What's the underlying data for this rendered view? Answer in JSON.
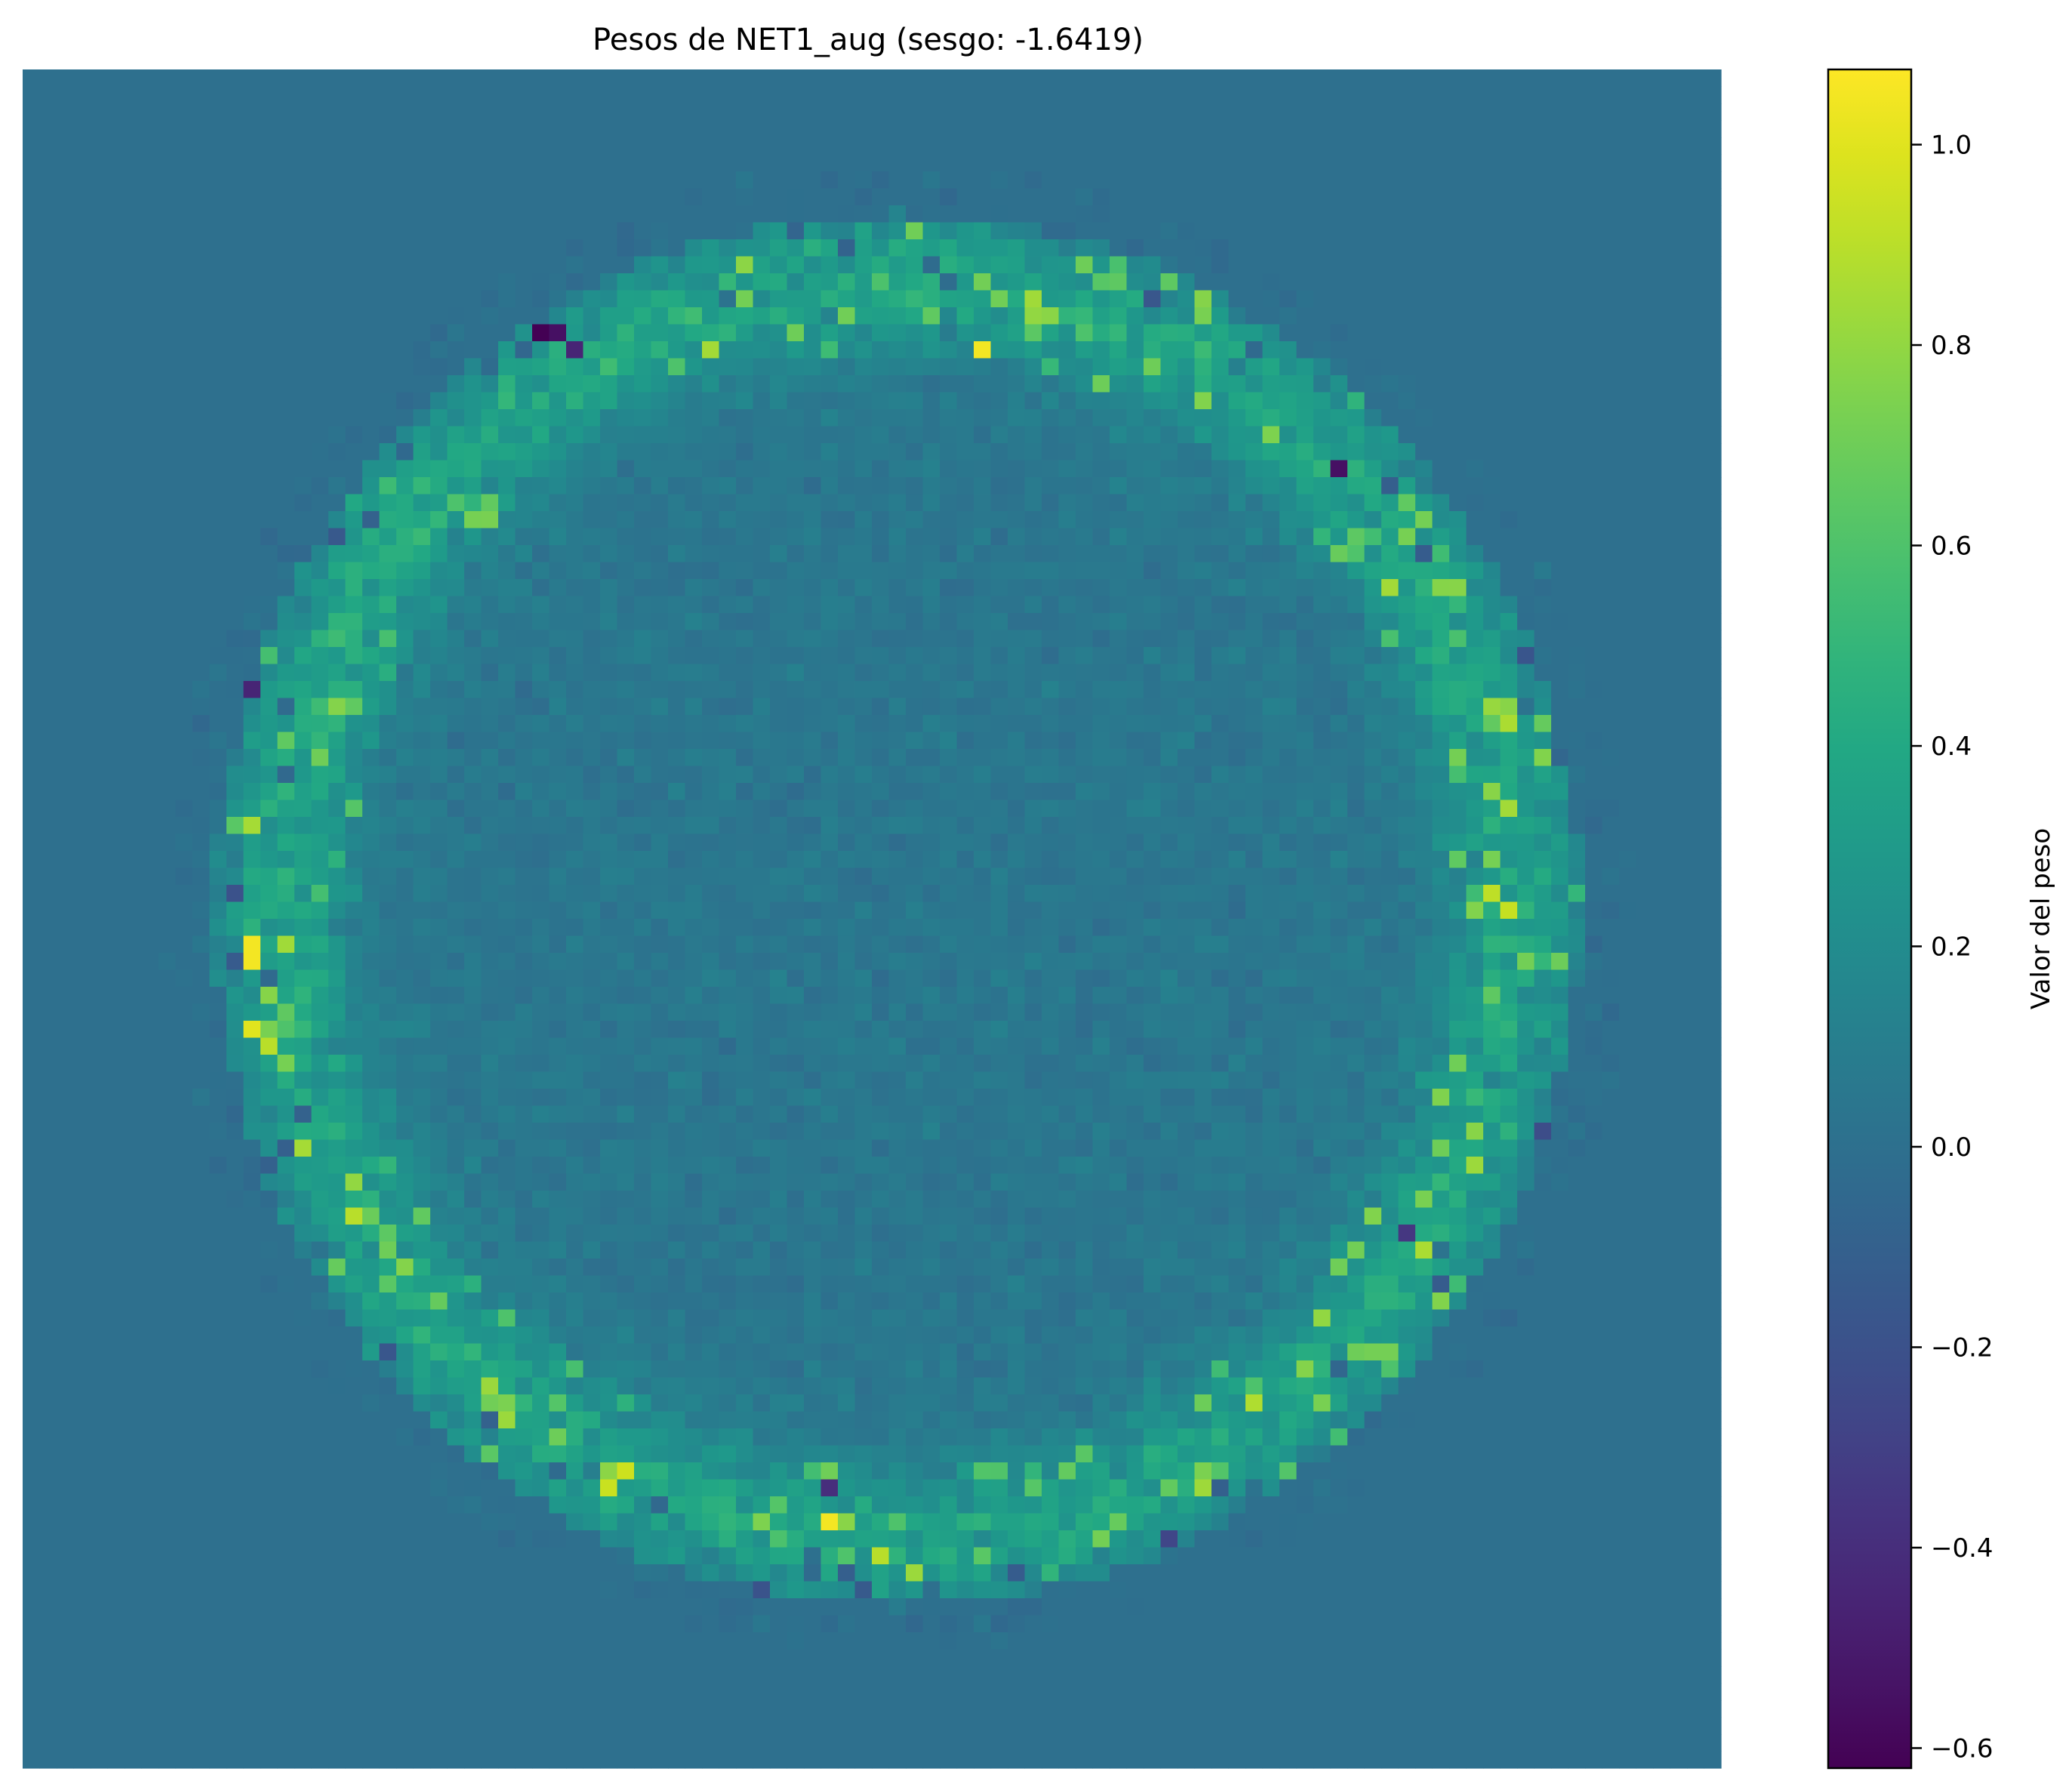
{
  "chart_data": {
    "type": "heatmap",
    "title": "Pesos de NET1_aug (sesgo: -1.6419)",
    "grid_size": [
      100,
      100
    ],
    "axes_visible": false,
    "grid": false,
    "colormap": "viridis",
    "background_value": 0.0,
    "description_of_values": {
      "outside_disk": 0.0,
      "disk_center": [
        49,
        51
      ],
      "disk_radius_cells": 41,
      "ring_peak_radius_cells": 37,
      "interior_typical_range": [
        -0.15,
        0.3
      ],
      "ring_typical_range": [
        0.2,
        0.8
      ],
      "max": 1.07,
      "min": -0.62
    },
    "notable_cells": [
      {
        "row": 15,
        "col": 30,
        "value": -0.62
      },
      {
        "row": 15,
        "col": 31,
        "value": -0.55
      },
      {
        "row": 16,
        "col": 32,
        "value": -0.45
      },
      {
        "row": 16,
        "col": 56,
        "value": 1.05
      },
      {
        "row": 14,
        "col": 59,
        "value": 0.8
      },
      {
        "row": 17,
        "col": 66,
        "value": 0.7
      },
      {
        "row": 23,
        "col": 77,
        "value": -0.55
      },
      {
        "row": 27,
        "col": 78,
        "value": 0.65
      },
      {
        "row": 36,
        "col": 13,
        "value": -0.45
      },
      {
        "row": 44,
        "col": 13,
        "value": 0.85
      },
      {
        "row": 51,
        "col": 13,
        "value": 1.05
      },
      {
        "row": 52,
        "col": 13,
        "value": 1.05
      },
      {
        "row": 56,
        "col": 13,
        "value": 1.0
      },
      {
        "row": 57,
        "col": 14,
        "value": 0.9
      },
      {
        "row": 63,
        "col": 16,
        "value": 0.85
      },
      {
        "row": 65,
        "col": 19,
        "value": 0.8
      },
      {
        "row": 69,
        "col": 21,
        "value": 0.7
      },
      {
        "row": 60,
        "col": 83,
        "value": 0.75
      },
      {
        "row": 63,
        "col": 83,
        "value": 0.7
      },
      {
        "row": 68,
        "col": 81,
        "value": -0.35
      },
      {
        "row": 73,
        "col": 76,
        "value": 0.8
      },
      {
        "row": 75,
        "col": 78,
        "value": 0.7
      },
      {
        "row": 82,
        "col": 35,
        "value": 0.95
      },
      {
        "row": 85,
        "col": 47,
        "value": 1.05
      },
      {
        "row": 83,
        "col": 47,
        "value": -0.4
      },
      {
        "row": 85,
        "col": 51,
        "value": 0.6
      }
    ],
    "colorbar": {
      "label": "Valor del peso",
      "min": -0.62,
      "max": 1.075,
      "ticks": [
        -0.6,
        -0.4,
        -0.2,
        0.0,
        0.2,
        0.4,
        0.6,
        0.8,
        1.0
      ],
      "tick_labels": [
        "−0.6",
        "−0.4",
        "−0.2",
        "0.0",
        "0.2",
        "0.4",
        "0.6",
        "0.8",
        "1.0"
      ]
    }
  }
}
